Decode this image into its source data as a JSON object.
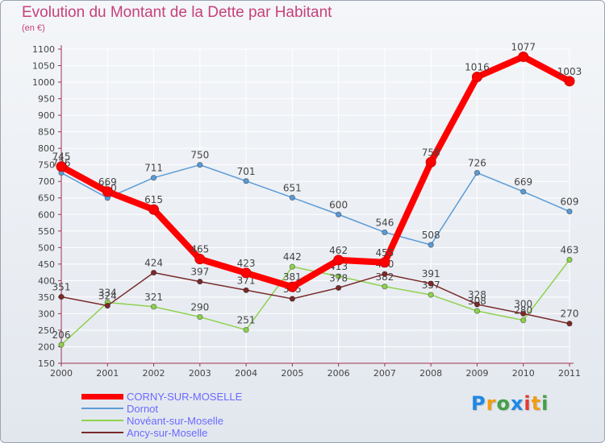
{
  "chart_data": {
    "type": "line",
    "title": "Evolution du Montant de la Dette par Habitant",
    "ylabel": "(en €)",
    "xlabel": "",
    "ylim": [
      150,
      1100
    ],
    "yticks": [
      150,
      200,
      250,
      300,
      350,
      400,
      450,
      500,
      550,
      600,
      650,
      700,
      750,
      800,
      850,
      900,
      950,
      1000,
      1050,
      1100
    ],
    "categories": [
      "2000",
      "2001",
      "2002",
      "2003",
      "2004",
      "2005",
      "2006",
      "2007",
      "2008",
      "2009",
      "2010",
      "2011"
    ],
    "series": [
      {
        "name": "Dornot",
        "color": "#5b9bd5",
        "values": [
          726,
          650,
          711,
          750,
          701,
          651,
          600,
          546,
          508,
          726,
          669,
          609
        ]
      },
      {
        "name": "Novéant-sur-Moselle",
        "color": "#8fd14f",
        "values": [
          206,
          334,
          321,
          290,
          251,
          442,
          413,
          382,
          357,
          308,
          280,
          463
        ]
      },
      {
        "name": "Ancy-sur-Moselle",
        "color": "#7a2a2a",
        "values": [
          351,
          324,
          424,
          397,
          371,
          345,
          378,
          420,
          391,
          328,
          300,
          270
        ]
      },
      {
        "name": "CORNY-SUR-MOSELLE",
        "color": "#ff0000",
        "values": [
          745,
          669,
          615,
          465,
          423,
          381,
          462,
          455,
          758,
          1016,
          1077,
          1003
        ]
      }
    ]
  },
  "legend": [
    {
      "label": "CORNY-SUR-MOSELLE",
      "color": "#ff0000",
      "text_color": "#6a6aff"
    },
    {
      "label": "Dornot",
      "color": "#5b9bd5",
      "text_color": "#6a6aff"
    },
    {
      "label": "Novéant-sur-Moselle",
      "color": "#8fd14f",
      "text_color": "#6a6aff"
    },
    {
      "label": "Ancy-sur-Moselle",
      "color": "#7a2a2a",
      "text_color": "#6a6aff"
    }
  ],
  "brand": {
    "letters": [
      "P",
      "r",
      "o",
      "x",
      "i",
      "t",
      "i"
    ],
    "colors": [
      "#1e88e5",
      "#f39c12",
      "#43a047",
      "#1e88e5",
      "#e53935",
      "#f39c12",
      "#43a047"
    ]
  }
}
